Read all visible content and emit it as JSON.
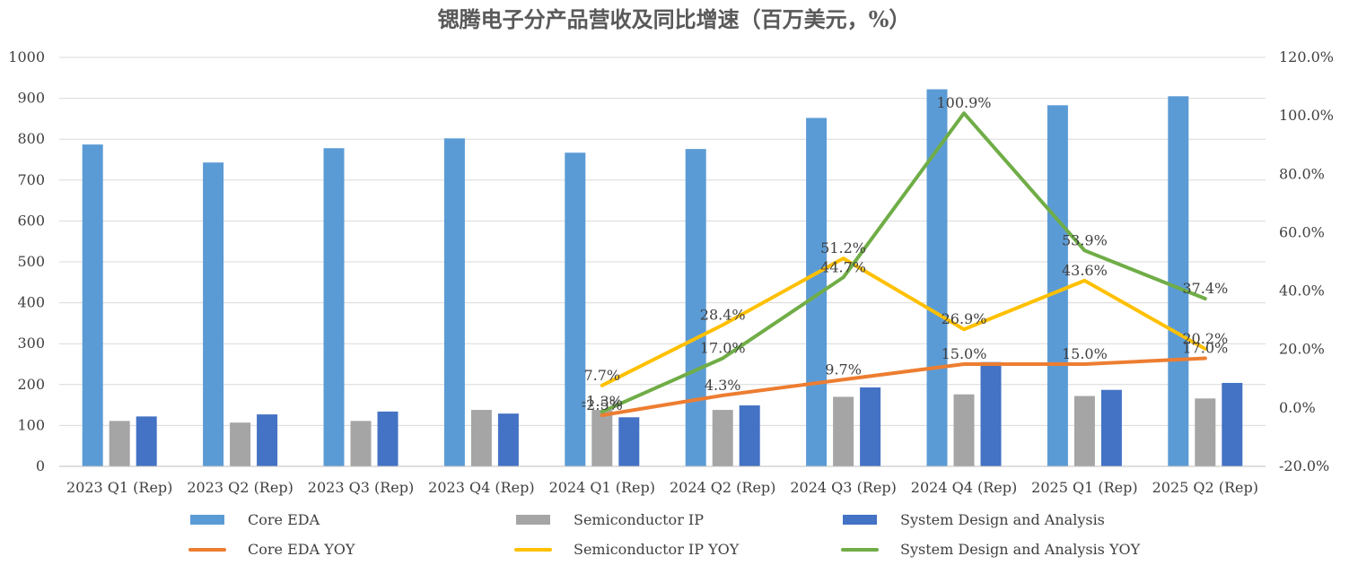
{
  "chart_data": {
    "type": "bar",
    "title": "锶腾电子分产品营收及同比增速（百万美元，%）",
    "categories": [
      "2023 Q1 (Rep)",
      "2023 Q2 (Rep)",
      "2023 Q3 (Rep)",
      "2023 Q4 (Rep)",
      "2024 Q1 (Rep)",
      "2024 Q2 (Rep)",
      "2024 Q3 (Rep)",
      "2024 Q4 (Rep)",
      "2025 Q1 (Rep)",
      "2025 Q2 (Rep)"
    ],
    "ylim_left": [
      0,
      1000
    ],
    "ylim_right": [
      -20,
      120
    ],
    "yticks_left": [
      "0",
      "100",
      "200",
      "300",
      "400",
      "500",
      "600",
      "700",
      "800",
      "900",
      "1000"
    ],
    "yticks_right": [
      "-20.0%",
      "0.0%",
      "20.0%",
      "40.0%",
      "60.0%",
      "80.0%",
      "100.0%",
      "120.0%"
    ],
    "grid": true,
    "legend_position": "bottom",
    "bar_series": [
      {
        "name": "Core EDA",
        "color": "#5b9bd5",
        "values": [
          787,
          743,
          778,
          802,
          767,
          776,
          852,
          922,
          883,
          905
        ]
      },
      {
        "name": "Semiconductor IP",
        "color": "#a5a5a5",
        "values": [
          111,
          107,
          111,
          138,
          138,
          138,
          170,
          176,
          172,
          166
        ]
      },
      {
        "name": "System Design and Analysis",
        "color": "#4472c4",
        "values": [
          122,
          127,
          134,
          129,
          120,
          149,
          193,
          255,
          187,
          204
        ]
      }
    ],
    "line_series": [
      {
        "name": "Core EDA YOY",
        "color": "#ed7d31",
        "values": [
          null,
          null,
          null,
          null,
          -2.5,
          4.3,
          9.7,
          15.0,
          15.0,
          17.0
        ],
        "labels": [
          "",
          "",
          "",
          "",
          "-2.5%",
          "4.3%",
          "9.7%",
          "15.0%",
          "15.0%",
          "17.0%"
        ]
      },
      {
        "name": "Semiconductor IP YOY",
        "color": "#ffc000",
        "values": [
          null,
          null,
          null,
          null,
          7.7,
          28.4,
          51.2,
          26.9,
          43.6,
          20.2
        ],
        "labels": [
          "",
          "",
          "",
          "",
          "7.7%",
          "28.4%",
          "51.2%",
          "26.9%",
          "43.6%",
          "20.2%"
        ]
      },
      {
        "name": "System Design and Analysis YOY",
        "color": "#70ad47",
        "values": [
          null,
          null,
          null,
          null,
          -1.3,
          17.0,
          44.7,
          100.9,
          53.9,
          37.4
        ],
        "labels": [
          "",
          "",
          "",
          "",
          "-1.3%",
          "17.0%",
          "44.7%",
          "100.9%",
          "53.9%",
          "37.4%"
        ]
      }
    ]
  }
}
